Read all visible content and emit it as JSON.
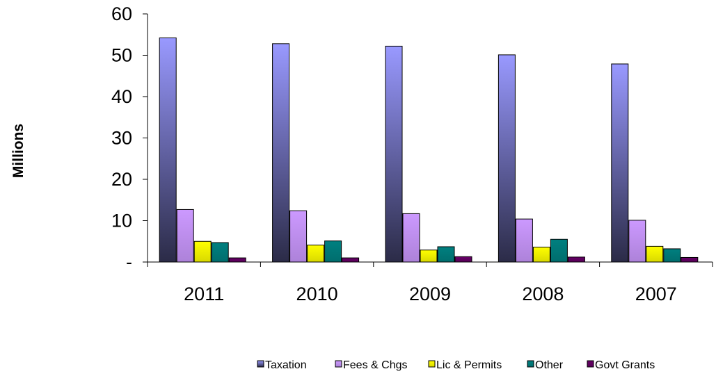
{
  "chart_data": {
    "type": "bar",
    "categories": [
      "2011",
      "2010",
      "2009",
      "2008",
      "2007"
    ],
    "series": [
      {
        "name": "Taxation",
        "values": [
          54.2,
          52.8,
          52.2,
          50.1,
          47.9
        ],
        "color": "#9999ff"
      },
      {
        "name": "Fees & Chgs",
        "values": [
          12.7,
          12.4,
          11.7,
          10.4,
          10.1
        ],
        "color": "#cc99ff"
      },
      {
        "name": "Lic & Permits",
        "values": [
          5.0,
          4.1,
          2.9,
          3.6,
          3.8
        ],
        "color": "#ffff00"
      },
      {
        "name": "Other",
        "values": [
          4.7,
          5.1,
          3.7,
          5.5,
          3.2
        ],
        "color": "#008080"
      },
      {
        "name": "Govt Grants",
        "values": [
          1.0,
          1.0,
          1.3,
          1.2,
          1.1
        ],
        "color": "#660066"
      }
    ],
    "ylabel": "Millions",
    "ylim": [
      0,
      60
    ],
    "yticks": [
      {
        "value": 0,
        "label": "-"
      },
      {
        "value": 10,
        "label": "10"
      },
      {
        "value": 20,
        "label": "20"
      },
      {
        "value": 30,
        "label": "30"
      },
      {
        "value": 40,
        "label": "40"
      },
      {
        "value": 50,
        "label": "50"
      },
      {
        "value": 60,
        "label": "60"
      }
    ],
    "grid": false,
    "legend_position": "bottom-right"
  }
}
